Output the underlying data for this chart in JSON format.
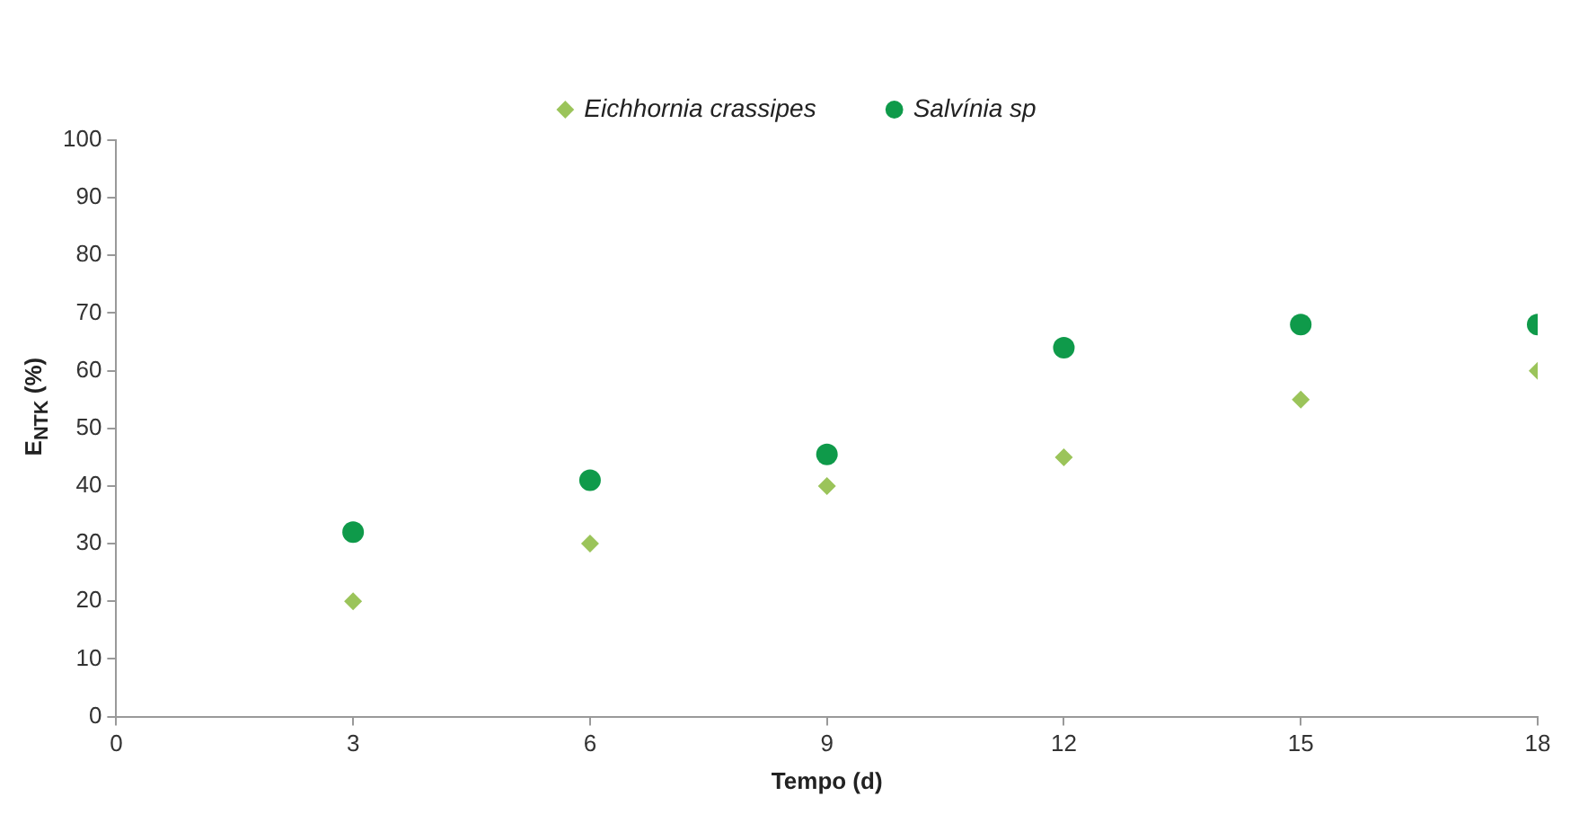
{
  "chart_data": {
    "type": "scatter",
    "xlabel": "Tempo (d)",
    "ylabel": "E$_{NTK}$ (%)",
    "x": [
      3,
      6,
      9,
      12,
      15,
      18
    ],
    "series": [
      {
        "name": "Eichhornia crassipes",
        "color": "#9bc45a",
        "marker": "diamond",
        "values": [
          20,
          30,
          40,
          45,
          55,
          60
        ]
      },
      {
        "name": "Salvínia sp",
        "color": "#0f9a4a",
        "marker": "circle",
        "values": [
          32,
          41,
          45.5,
          64,
          68,
          68
        ]
      }
    ],
    "xlim": [
      0,
      18
    ],
    "xticks": [
      0,
      3,
      6,
      9,
      12,
      15,
      18
    ],
    "ylim": [
      0,
      100
    ],
    "yticks": [
      0,
      10,
      20,
      30,
      40,
      50,
      60,
      70,
      80,
      90,
      100
    ],
    "grid": false,
    "legend": "top"
  }
}
